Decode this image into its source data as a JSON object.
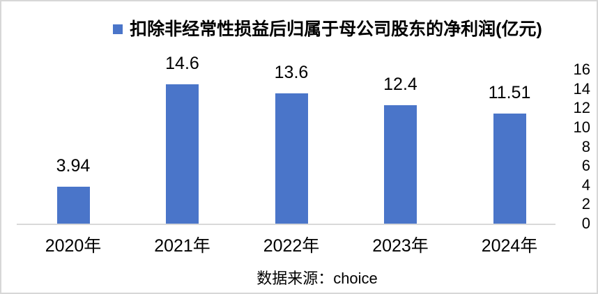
{
  "legend": {
    "marker_color": "#4a75c9",
    "label": "扣除非经常性损益后归属于母公司股东的净利润(亿元)"
  },
  "source": "数据来源：choice",
  "chart_data": {
    "type": "bar",
    "title": "扣除非经常性损益后归属于母公司股东的净利润(亿元)",
    "categories": [
      "2020年",
      "2021年",
      "2022年",
      "2023年",
      "2024年"
    ],
    "series": [
      {
        "name": "扣除非经常性损益后归属于母公司股东的净利润(亿元)",
        "values": [
          3.94,
          14.6,
          13.6,
          12.4,
          11.51
        ],
        "value_labels": [
          "3.94",
          "14.6",
          "13.6",
          "12.4",
          "11.51"
        ],
        "color": "#4a75c9"
      }
    ],
    "xlabel": "",
    "ylabel": "",
    "ylim": [
      0,
      16
    ],
    "y_ticks": [
      0,
      2,
      4,
      6,
      8,
      10,
      12,
      14,
      16
    ],
    "y_axis_side": "right",
    "grid": false,
    "legend_position": "top-center",
    "data_labels": true,
    "axis_line_color": "#d9d9d9",
    "caption": "数据来源：choice"
  }
}
